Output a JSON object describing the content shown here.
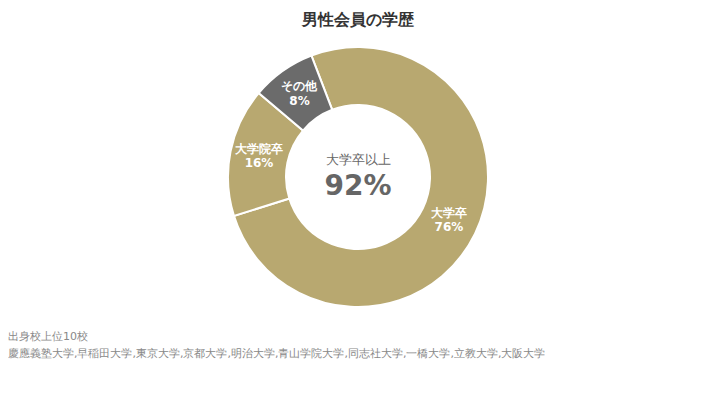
{
  "chart_data": {
    "type": "pie",
    "title": "男性会員の学歴",
    "categories": [
      "大学卒",
      "大学院卒",
      "その他"
    ],
    "values": [
      76,
      16,
      8
    ],
    "value_labels": [
      "76%",
      "16%",
      "8%"
    ],
    "colors": [
      "#b8a870",
      "#b8a870",
      "#6b6b6b"
    ],
    "data_labels": true,
    "annotations": [
      "大学卒以上",
      "92%",
      "出身校上位10校",
      "慶應義塾大学,早稲田大学,東京大学,京都大学,明治大学,青山学院大学,同志社大学,一橋大学,立教大学,大阪大学"
    ]
  }
}
